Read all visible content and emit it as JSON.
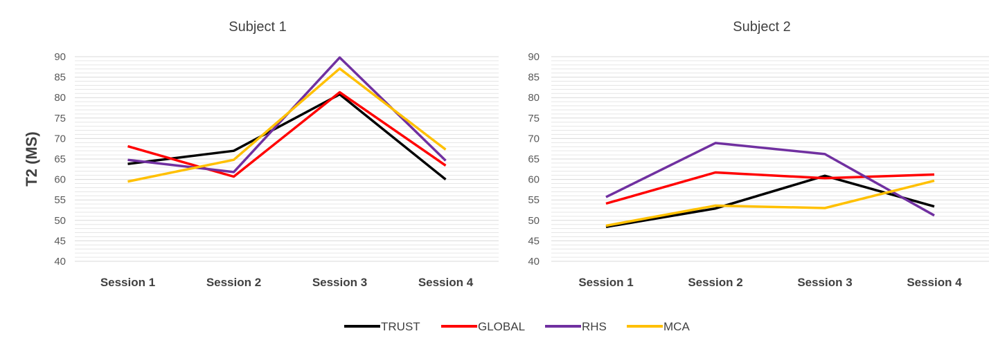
{
  "figure": {
    "ylabel": "T2 (MS)"
  },
  "legend": [
    {
      "name": "TRUST",
      "color": "#000000"
    },
    {
      "name": "GLOBAL",
      "color": "#ff0000"
    },
    {
      "name": "RHS",
      "color": "#7030a0"
    },
    {
      "name": "MCA",
      "color": "#ffc000"
    }
  ],
  "chart_data": [
    {
      "type": "line",
      "title": "Subject 1",
      "categories": [
        "Session 1",
        "Session 2",
        "Session 3",
        "Session 4"
      ],
      "ylabel": "T2 (MS)",
      "ylim": [
        40,
        90
      ],
      "yticks": [
        40,
        45,
        50,
        55,
        60,
        65,
        70,
        75,
        80,
        85,
        90
      ],
      "series": [
        {
          "name": "TRUST",
          "color": "#000000",
          "values": [
            63.8,
            67.0,
            80.8,
            60.0
          ]
        },
        {
          "name": "GLOBAL",
          "color": "#ff0000",
          "values": [
            68.1,
            60.7,
            81.3,
            63.4
          ]
        },
        {
          "name": "RHS",
          "color": "#7030a0",
          "values": [
            64.8,
            61.8,
            89.8,
            64.6
          ]
        },
        {
          "name": "MCA",
          "color": "#ffc000",
          "values": [
            59.5,
            64.8,
            87.1,
            67.3
          ]
        }
      ]
    },
    {
      "type": "line",
      "title": "Subject 2",
      "categories": [
        "Session 1",
        "Session 2",
        "Session 3",
        "Session 4"
      ],
      "ylabel": "",
      "ylim": [
        40,
        90
      ],
      "yticks": [
        40,
        45,
        50,
        55,
        60,
        65,
        70,
        75,
        80,
        85,
        90
      ],
      "series": [
        {
          "name": "TRUST",
          "color": "#000000",
          "values": [
            48.4,
            52.9,
            60.9,
            53.4
          ]
        },
        {
          "name": "GLOBAL",
          "color": "#ff0000",
          "values": [
            54.1,
            61.7,
            60.3,
            61.2
          ]
        },
        {
          "name": "RHS",
          "color": "#7030a0",
          "values": [
            55.7,
            68.9,
            66.2,
            51.2
          ]
        },
        {
          "name": "MCA",
          "color": "#ffc000",
          "values": [
            48.7,
            53.6,
            53.0,
            59.7
          ]
        }
      ]
    }
  ]
}
